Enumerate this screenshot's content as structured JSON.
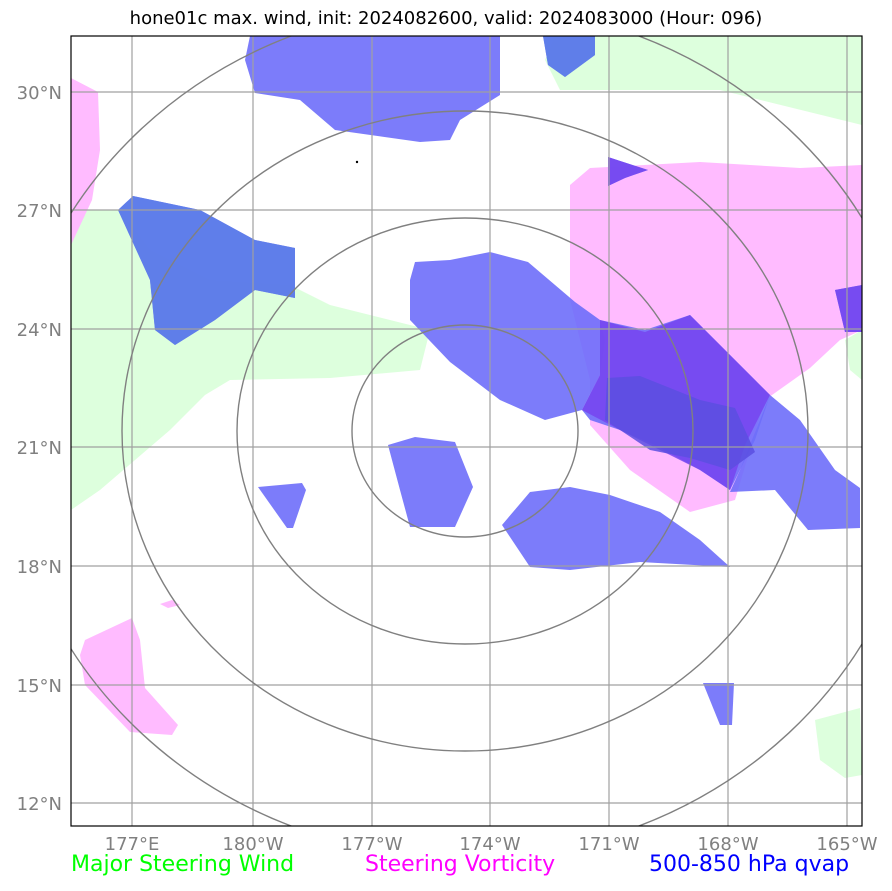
{
  "title": "hone01c max. wind, init: 2024082600, valid: 2024083000 (Hour: 096)",
  "axes": {
    "lon_ticks": [
      "177°E",
      "180°W",
      "177°W",
      "174°W",
      "171°W",
      "168°W",
      "165°W"
    ],
    "lat_ticks": [
      "30°N",
      "27°N",
      "24°N",
      "21°N",
      "18°N",
      "15°N",
      "12°N"
    ]
  },
  "legend": [
    {
      "label": "Major Steering Wind",
      "color": "#00ff00"
    },
    {
      "label": "Steering Vorticity",
      "color": "#ff00ff"
    },
    {
      "label": "500-850 hPa qvap",
      "color": "#0000ff"
    }
  ],
  "colors": {
    "steering_wind_fill": "#ddffdd",
    "vorticity_fill": "#ffbbff",
    "qvap_fill": "#6e6efa",
    "range_ring": "#808080",
    "gridline": "#a0a0a0"
  }
}
